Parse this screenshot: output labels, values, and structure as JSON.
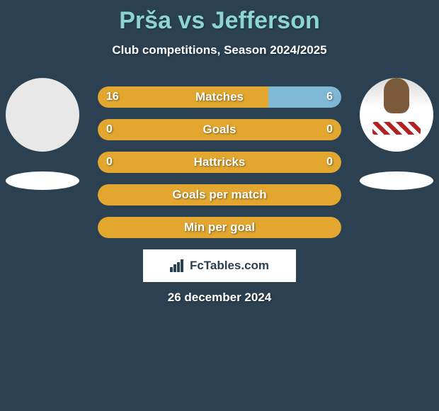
{
  "background_color": "#2b4151",
  "title": {
    "text": "Prša vs Jefferson",
    "color": "#8dd4d4",
    "font_size": 34,
    "font_weight": 700
  },
  "subtitle": {
    "text": "Club competitions, Season 2024/2025",
    "color": "#ffffff",
    "font_size": 17
  },
  "players": {
    "left": {
      "name": "Prša",
      "has_photo": false
    },
    "right": {
      "name": "Jefferson",
      "has_photo": true
    }
  },
  "bar_style": {
    "height": 30,
    "border_radius": 15,
    "gap": 16,
    "label_color": "#ffffff",
    "label_font_size": 17,
    "value_font_size": 16
  },
  "bars": [
    {
      "label": "Matches",
      "left_value": "16",
      "right_value": "6",
      "left_pct": 70,
      "right_pct": 30,
      "left_color": "#e3a72f",
      "right_color": "#7fb8d4",
      "mode": "split"
    },
    {
      "label": "Goals",
      "left_value": "0",
      "right_value": "0",
      "left_pct": 50,
      "right_pct": 50,
      "left_color": "#e3a72f",
      "right_color": "#e3a72f",
      "mode": "full"
    },
    {
      "label": "Hattricks",
      "left_value": "0",
      "right_value": "0",
      "left_pct": 50,
      "right_pct": 50,
      "left_color": "#e3a72f",
      "right_color": "#e3a72f",
      "mode": "full"
    },
    {
      "label": "Goals per match",
      "left_value": "",
      "right_value": "",
      "left_pct": 50,
      "right_pct": 50,
      "left_color": "#e3a72f",
      "right_color": "#e3a72f",
      "mode": "full"
    },
    {
      "label": "Min per goal",
      "left_value": "",
      "right_value": "",
      "left_pct": 50,
      "right_pct": 50,
      "left_color": "#e3a72f",
      "right_color": "#e3a72f",
      "mode": "full"
    }
  ],
  "logo": {
    "text": "FcTables.com",
    "bg": "#ffffff",
    "text_color": "#2b4151"
  },
  "date": {
    "text": "26 december 2024",
    "color": "#ffffff",
    "font_size": 17
  }
}
